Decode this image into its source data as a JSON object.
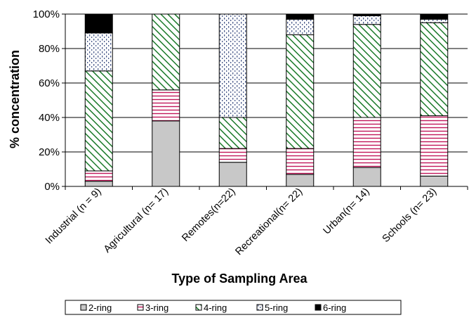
{
  "chart_data": {
    "type": "bar",
    "stacked": true,
    "categories": [
      "Industrial (n = 9)",
      "Agricultural (n= 17)",
      "Remotes(n=22)",
      "Recreational(n= 22)",
      "Urban(n= 14)",
      "Schools (n= 23)"
    ],
    "series": [
      {
        "name": "2-ring",
        "values": [
          3,
          38,
          14,
          7,
          11,
          6
        ],
        "color": "#c8c8c8",
        "pattern": "solid"
      },
      {
        "name": "3-ring",
        "values": [
          6,
          18,
          8,
          15,
          29,
          35
        ],
        "color": "#c2185b",
        "pattern": "horizontal-lines"
      },
      {
        "name": "4-ring",
        "values": [
          58,
          44,
          18,
          66,
          54,
          54
        ],
        "color": "#1b7a2a",
        "pattern": "diagonal-lines"
      },
      {
        "name": "5-ring",
        "values": [
          22,
          0,
          60,
          9,
          5,
          2
        ],
        "color": "#4a5a8a",
        "pattern": "dots"
      },
      {
        "name": "6-ring",
        "values": [
          11,
          0,
          0,
          3,
          1,
          3
        ],
        "color": "#000000",
        "pattern": "solid"
      }
    ],
    "yticks": [
      "0%",
      "20%",
      "40%",
      "60%",
      "80%",
      "100%"
    ],
    "ylim": [
      0,
      100
    ],
    "ylabel": "% concentration",
    "xlabel": "Type of Sampling Area",
    "grid": true,
    "legend_position": "bottom"
  }
}
